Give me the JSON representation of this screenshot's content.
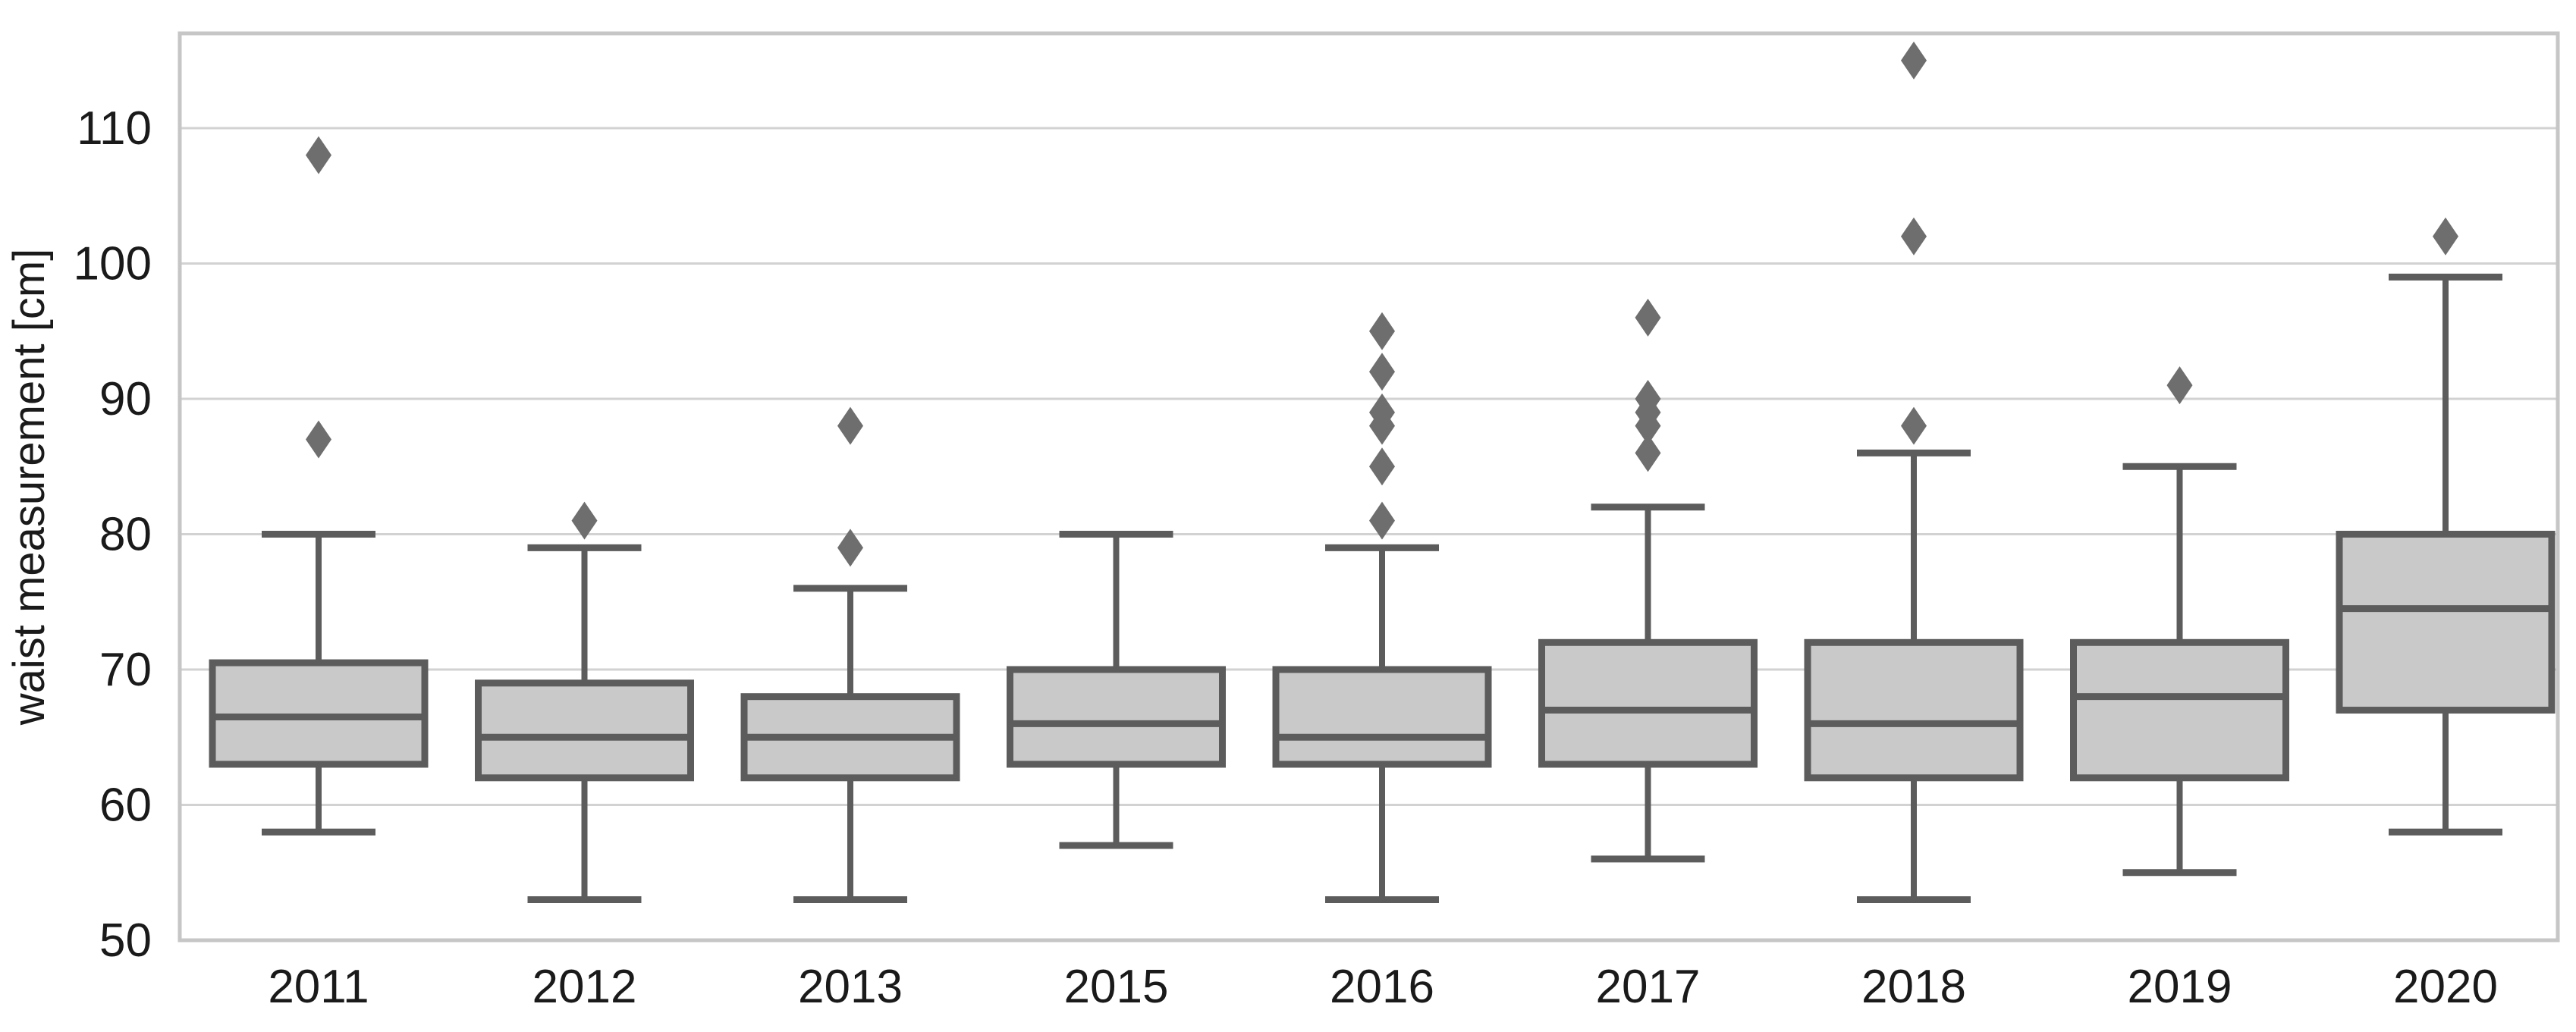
{
  "chart": {
    "ylabel": "waist measurement [cm]",
    "background": "#ffffff",
    "colors": {
      "box_fill": "#c9c9c9",
      "box_edge": "#5c5c5c",
      "median": "#5c5c5c",
      "whisker": "#5c5c5c",
      "cap": "#5c5c5c",
      "outlier": "#6e6e6e",
      "gridline": "#d2d2d2",
      "spine": "#c6c6c6",
      "tick_text": "#1a1a1a"
    }
  },
  "chart_data": {
    "type": "boxplot",
    "title": "",
    "xlabel": "",
    "ylabel": "waist measurement [cm]",
    "categories": [
      "2011",
      "2012",
      "2013",
      "2015",
      "2016",
      "2017",
      "2018",
      "2019",
      "2020"
    ],
    "yticks": [
      50,
      60,
      70,
      80,
      90,
      100,
      110
    ],
    "ylim": [
      50,
      117
    ],
    "grid": "horizontal-only",
    "legend": "none",
    "marker": "diamond",
    "series": [
      {
        "year": "2011",
        "whisker_low": 58,
        "q1": 63,
        "median": 66.5,
        "q3": 70.5,
        "whisker_high": 80,
        "outliers": [
          87,
          108
        ]
      },
      {
        "year": "2012",
        "whisker_low": 53,
        "q1": 62,
        "median": 65,
        "q3": 69,
        "whisker_high": 79,
        "outliers": [
          81
        ]
      },
      {
        "year": "2013",
        "whisker_low": 53,
        "q1": 62,
        "median": 65,
        "q3": 68,
        "whisker_high": 76,
        "outliers": [
          79,
          88
        ]
      },
      {
        "year": "2015",
        "whisker_low": 57,
        "q1": 63,
        "median": 66,
        "q3": 70,
        "whisker_high": 80,
        "outliers": []
      },
      {
        "year": "2016",
        "whisker_low": 53,
        "q1": 63,
        "median": 65,
        "q3": 70,
        "whisker_high": 79,
        "outliers": [
          81,
          85,
          88,
          89,
          92,
          95
        ]
      },
      {
        "year": "2017",
        "whisker_low": 56,
        "q1": 63,
        "median": 67,
        "q3": 72,
        "whisker_high": 82,
        "outliers": [
          86,
          88,
          89,
          90,
          96
        ]
      },
      {
        "year": "2018",
        "whisker_low": 53,
        "q1": 62,
        "median": 66,
        "q3": 72,
        "whisker_high": 86,
        "outliers": [
          88,
          102,
          115
        ]
      },
      {
        "year": "2019",
        "whisker_low": 55,
        "q1": 62,
        "median": 68,
        "q3": 72,
        "whisker_high": 85,
        "outliers": [
          91
        ]
      },
      {
        "year": "2020",
        "whisker_low": 58,
        "q1": 67,
        "median": 74.5,
        "q3": 80,
        "whisker_high": 99,
        "outliers": [
          102
        ]
      }
    ]
  }
}
